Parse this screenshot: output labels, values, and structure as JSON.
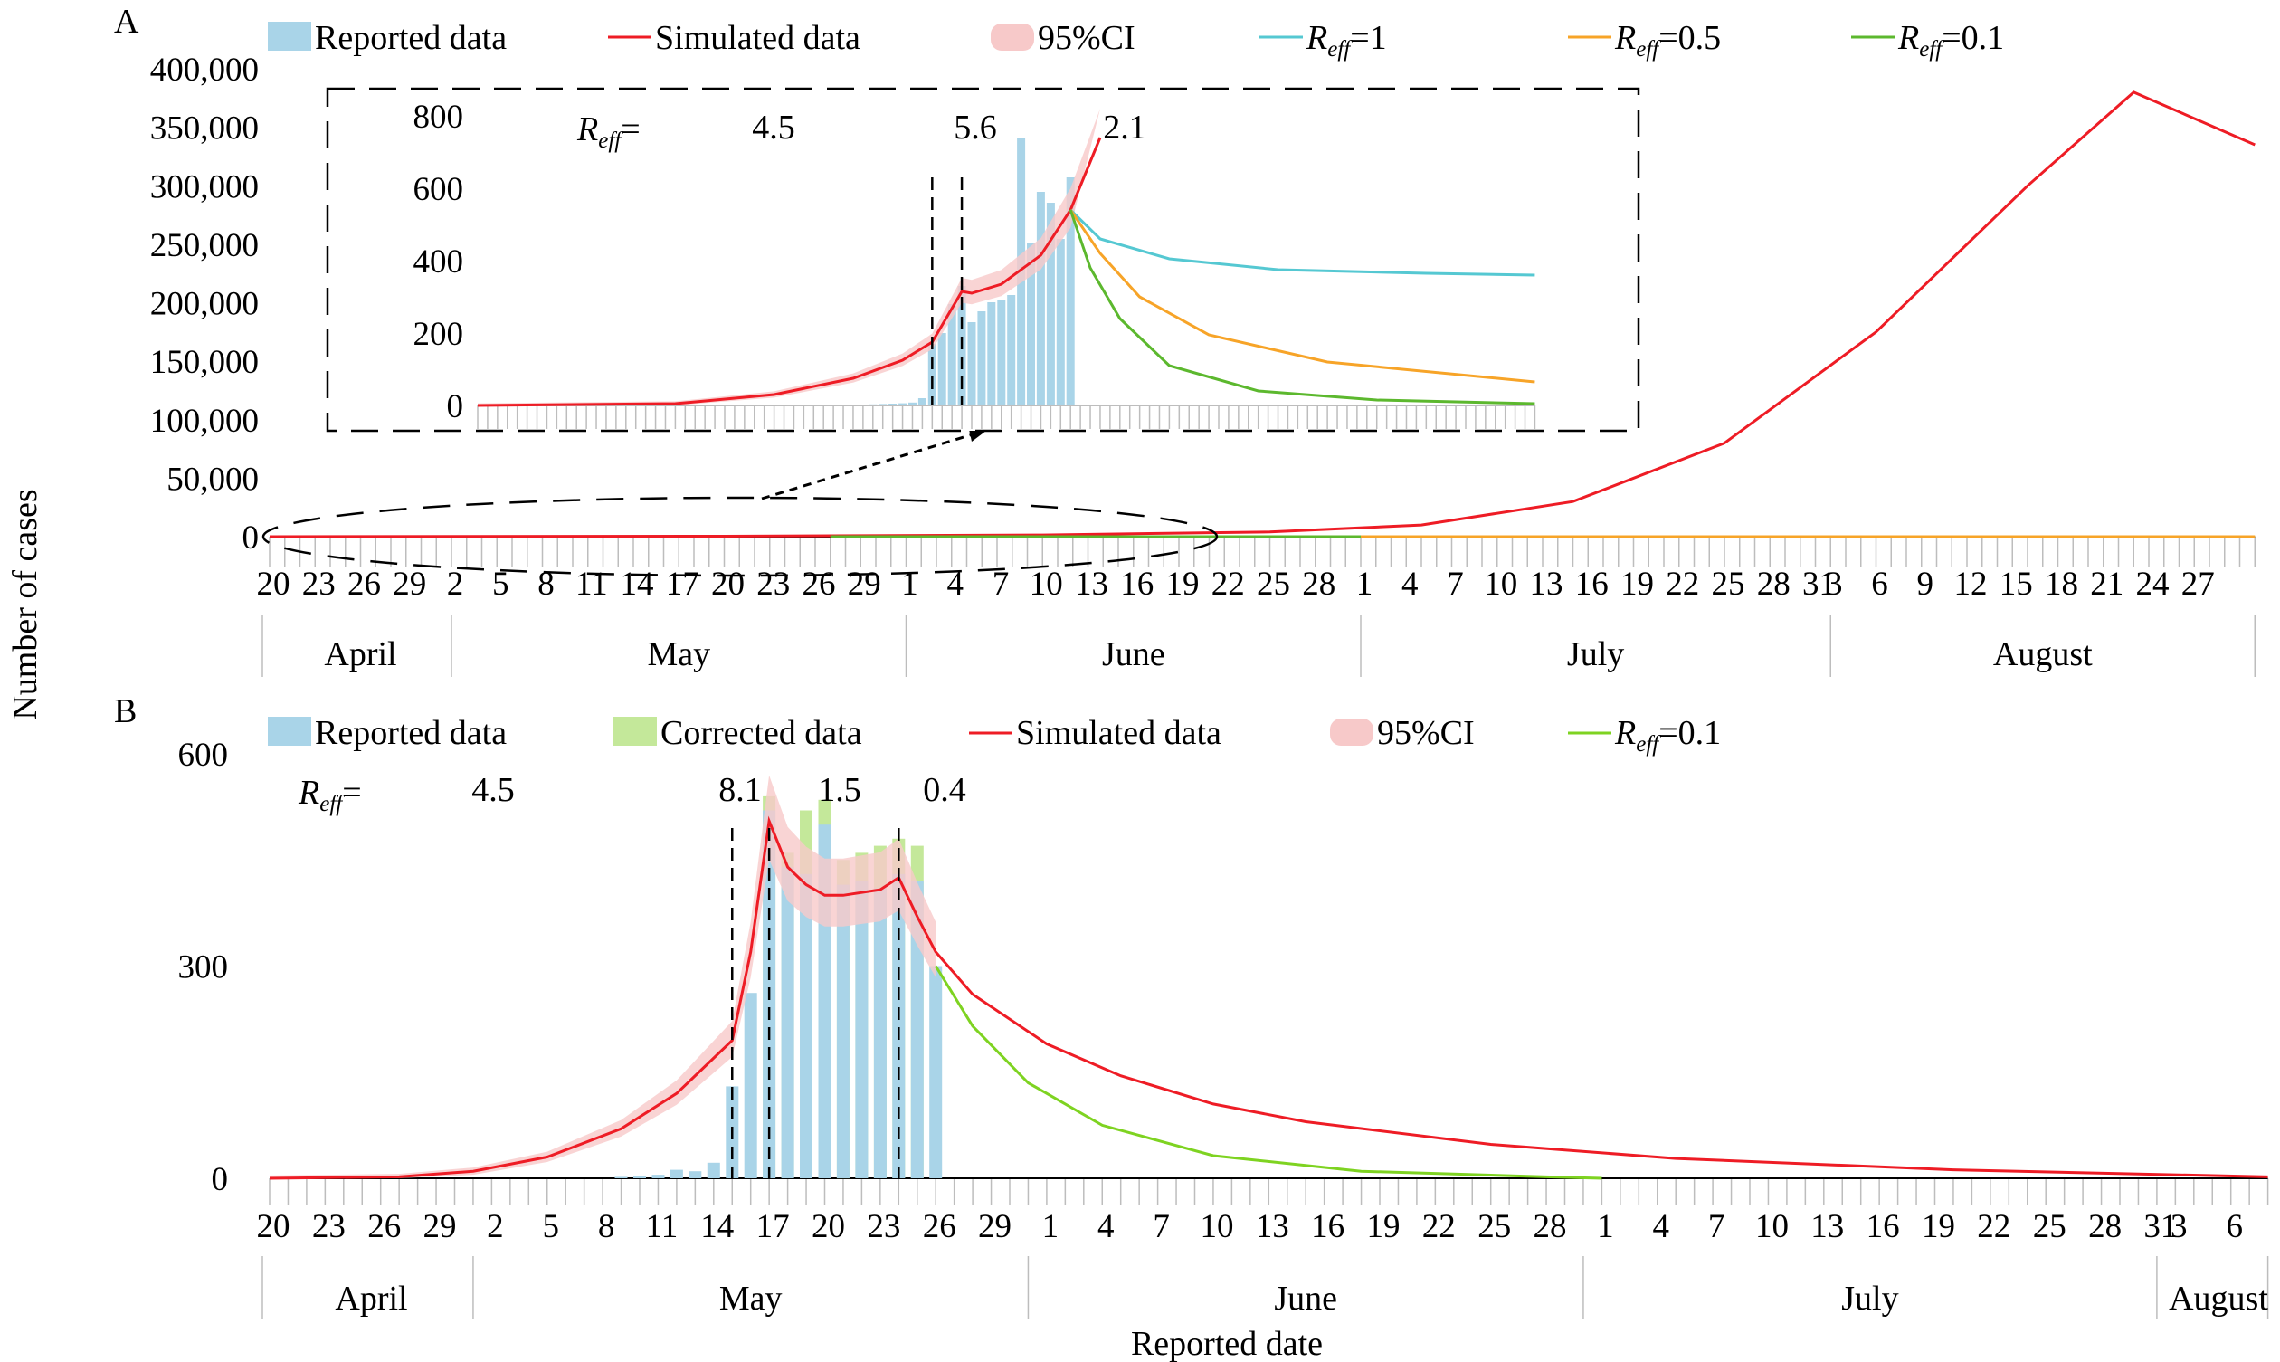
{
  "figure": {
    "y_axis_label": "Number of cases",
    "x_axis_label": "Reported date"
  },
  "chart_data": [
    {
      "panel": "A",
      "type": "line",
      "ylabel": "Number of cases",
      "ylim": [
        0,
        400000
      ],
      "yticks": [
        "0",
        "50,000",
        "100,000",
        "150,000",
        "200,000",
        "250,000",
        "300,000",
        "350,000",
        "400,000"
      ],
      "x_tick_labels": [
        "20",
        "23",
        "26",
        "29",
        "2",
        "5",
        "8",
        "11",
        "14",
        "17",
        "20",
        "23",
        "26",
        "29",
        "1",
        "4",
        "7",
        "10",
        "13",
        "16",
        "19",
        "22",
        "25",
        "28",
        "1",
        "4",
        "7",
        "10",
        "13",
        "16",
        "19",
        "22",
        "25",
        "28",
        "31",
        "3",
        "6",
        "9",
        "12",
        "15",
        "18",
        "21",
        "24",
        "27"
      ],
      "months": [
        "April",
        "May",
        "June",
        "July",
        "August"
      ],
      "x_range": [
        "April 20",
        "August 29"
      ],
      "legend": [
        "Reported data",
        "Simulated data",
        "95%CI",
        "R_eff=1",
        "R_eff=0.5",
        "R_eff=0.1"
      ],
      "legend_placement": "top",
      "colors": {
        "reported": "#a9d4e8",
        "simulated": "#ee1c25",
        "ci": "#f7c9c9",
        "reff1": "#55c8d2",
        "reff05": "#f7a428",
        "reff01": "#5cb82e"
      },
      "series": [
        {
          "name": "Simulated data",
          "points": [
            [
              "April 20",
              0
            ],
            [
              "May 20",
              400
            ],
            [
              "June 10",
              1500
            ],
            [
              "June 25",
              4000
            ],
            [
              "July 5",
              10000
            ],
            [
              "July 15",
              30000
            ],
            [
              "July 25",
              80000
            ],
            [
              "August 4",
              175000
            ],
            [
              "August 14",
              300000
            ],
            [
              "August 21",
              380000
            ],
            [
              "August 29",
              335000
            ]
          ]
        },
        {
          "name": "R_eff=0.5",
          "points": [
            [
              "June 19",
              0
            ],
            [
              "August 29",
              0
            ]
          ]
        },
        {
          "name": "R_eff=0.1",
          "points": [
            [
              "May 27",
              0
            ],
            [
              "July 1",
              0
            ]
          ]
        }
      ],
      "inset": {
        "ylim": [
          0,
          800
        ],
        "yticks": [
          "0",
          "200",
          "400",
          "600",
          "800"
        ],
        "reff_label": "R_eff =",
        "reff_values": [
          "4.5",
          "5.6",
          "2.1"
        ],
        "breakpoints": [
          "June 5",
          "June 8"
        ],
        "reported": {
          "name": "Reported data",
          "dates": [
            "May 30",
            "May 31",
            "June 1",
            "June 2",
            "June 3",
            "June 4",
            "June 5",
            "June 6",
            "June 7",
            "June 8",
            "June 9",
            "June 10",
            "June 11",
            "June 12",
            "June 13",
            "June 14",
            "June 15",
            "June 16",
            "June 17",
            "June 18",
            "June 19"
          ],
          "values": [
            3,
            4,
            5,
            6,
            8,
            20,
            170,
            200,
            280,
            330,
            230,
            260,
            285,
            290,
            305,
            740,
            450,
            590,
            560,
            460,
            630
          ]
        },
        "simulated": {
          "name": "Simulated data",
          "points": [
            [
              "April 20",
              0
            ],
            [
              "May 10",
              5
            ],
            [
              "May 20",
              30
            ],
            [
              "May 28",
              75
            ],
            [
              "June 2",
              125
            ],
            [
              "June 5",
              175
            ],
            [
              "June 8",
              315
            ],
            [
              "June 9",
              310
            ],
            [
              "June 12",
              335
            ],
            [
              "June 16",
              415
            ],
            [
              "June 19",
              540
            ],
            [
              "June 22",
              740
            ]
          ]
        },
        "projections": [
          {
            "name": "R_eff=1",
            "points": [
              [
                "June 19",
                540
              ],
              [
                "June 22",
                460
              ],
              [
                "June 29",
                405
              ],
              [
                "July 10",
                375
              ],
              [
                "July 25",
                365
              ],
              [
                "August 5",
                360
              ]
            ]
          },
          {
            "name": "R_eff=0.5",
            "points": [
              [
                "June 19",
                540
              ],
              [
                "June 22",
                420
              ],
              [
                "June 26",
                300
              ],
              [
                "July 3",
                195
              ],
              [
                "July 15",
                120
              ],
              [
                "August 5",
                65
              ]
            ]
          },
          {
            "name": "R_eff=0.1",
            "points": [
              [
                "June 19",
                540
              ],
              [
                "June 21",
                380
              ],
              [
                "June 24",
                240
              ],
              [
                "June 29",
                110
              ],
              [
                "July 8",
                40
              ],
              [
                "July 20",
                15
              ],
              [
                "August 5",
                5
              ]
            ]
          }
        ]
      }
    },
    {
      "panel": "B",
      "type": "bar+line",
      "ylim": [
        0,
        600
      ],
      "yticks": [
        "0",
        "300",
        "600"
      ],
      "x_tick_labels": [
        "20",
        "23",
        "26",
        "29",
        "2",
        "5",
        "8",
        "11",
        "14",
        "17",
        "20",
        "23",
        "26",
        "29",
        "1",
        "4",
        "7",
        "10",
        "13",
        "16",
        "19",
        "22",
        "25",
        "28",
        "1",
        "4",
        "7",
        "10",
        "13",
        "16",
        "19",
        "22",
        "25",
        "28",
        "31",
        "3",
        "6"
      ],
      "months": [
        "April",
        "May",
        "June",
        "July",
        "August"
      ],
      "x_range": [
        "April 20",
        "August 6"
      ],
      "legend": [
        "Reported data",
        "Corrected data",
        "Simulated data",
        "95%CI",
        "R_eff=0.1"
      ],
      "legend_placement": "top",
      "colors": {
        "reported": "#a9d4e8",
        "corrected": "#c4e89a",
        "simulated": "#ee1c25",
        "ci": "#f7c9c9",
        "reff01": "#7ed321"
      },
      "reff_label": "R_eff =",
      "reff_values": [
        "4.5",
        "8.1",
        "1.5",
        "0.4"
      ],
      "breakpoints": [
        "May 15",
        "May 17",
        "May 24"
      ],
      "reported": {
        "name": "Reported data",
        "dates": [
          "May 9",
          "May 10",
          "May 11",
          "May 12",
          "May 13",
          "May 14",
          "May 15",
          "May 16",
          "May 17",
          "May 18",
          "May 19",
          "May 20",
          "May 21",
          "May 22",
          "May 23",
          "May 24",
          "May 25",
          "May 26"
        ],
        "values": [
          2,
          3,
          5,
          12,
          10,
          22,
          130,
          262,
          520,
          440,
          430,
          500,
          415,
          420,
          410,
          430,
          420,
          300
        ]
      },
      "corrected": {
        "name": "Corrected data",
        "dates": [
          "May 17",
          "May 18",
          "May 19",
          "May 20",
          "May 21",
          "May 22",
          "May 23",
          "May 24",
          "May 25"
        ],
        "values": [
          540,
          460,
          520,
          535,
          450,
          460,
          470,
          480,
          470
        ]
      },
      "series": [
        {
          "name": "Simulated data",
          "points": [
            [
              "April 20",
              0
            ],
            [
              "April 27",
              2
            ],
            [
              "May 1",
              10
            ],
            [
              "May 5",
              30
            ],
            [
              "May 9",
              70
            ],
            [
              "May 12",
              120
            ],
            [
              "May 15",
              195
            ],
            [
              "May 16",
              320
            ],
            [
              "May 17",
              505
            ],
            [
              "May 18",
              440
            ],
            [
              "May 19",
              415
            ],
            [
              "May 20",
              400
            ],
            [
              "May 21",
              400
            ],
            [
              "May 23",
              408
            ],
            [
              "May 24",
              425
            ],
            [
              "May 25",
              370
            ],
            [
              "May 26",
              320
            ],
            [
              "May 28",
              260
            ],
            [
              "June 1",
              190
            ],
            [
              "June 5",
              145
            ],
            [
              "June 10",
              105
            ],
            [
              "June 15",
              80
            ],
            [
              "June 25",
              48
            ],
            [
              "July 5",
              28
            ],
            [
              "July 20",
              12
            ],
            [
              "August 6",
              2
            ]
          ]
        },
        {
          "name": "R_eff=0.1",
          "points": [
            [
              "May 26",
              300
            ],
            [
              "May 28",
              215
            ],
            [
              "May 31",
              135
            ],
            [
              "June 4",
              75
            ],
            [
              "June 10",
              32
            ],
            [
              "June 18",
              10
            ],
            [
              "June 28",
              2
            ],
            [
              "July 1",
              0
            ]
          ]
        }
      ]
    }
  ]
}
